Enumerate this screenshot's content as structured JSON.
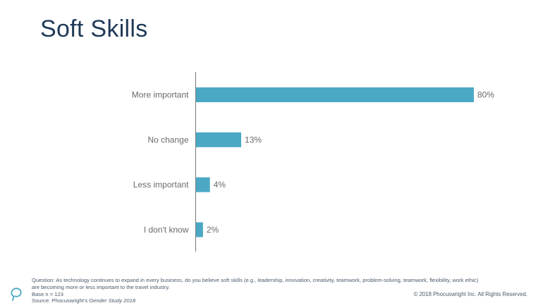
{
  "title": "Soft Skills",
  "chart_data": {
    "type": "bar",
    "orientation": "horizontal",
    "categories": [
      "More important",
      "No change",
      "Less important",
      "I don't know"
    ],
    "values": [
      80,
      13,
      4,
      2
    ],
    "value_labels": [
      "80%",
      "13%",
      "4%",
      "2%"
    ],
    "title": "Soft Skills",
    "xlabel": "",
    "ylabel": "",
    "xlim": [
      0,
      100
    ],
    "grid": false,
    "bar_color": "#4ba8c4"
  },
  "footer": {
    "question_line1": "Question: As technology continues to expand in every business, do you believe soft skills (e.g., leadership, innovation, creativity, teamwork, problem-solving, teamwork, flexibility, work ethic)",
    "question_line2": "are becoming more or less important to the travel industry.",
    "base": "Base n = 123",
    "source_prefix": "Source: Phocuswright's ",
    "source_title": "Gender Study 2018",
    "copyright": "© 2018 Phocuswright Inc. All Rights Reserved."
  },
  "colors": {
    "title": "#1f3a57",
    "bar": "#4ba8c4",
    "axis": "#7a7a7a",
    "label": "#6b6b6b",
    "logo": "#4ba8c4"
  },
  "logo_icon": "phocuswright-logo-icon"
}
